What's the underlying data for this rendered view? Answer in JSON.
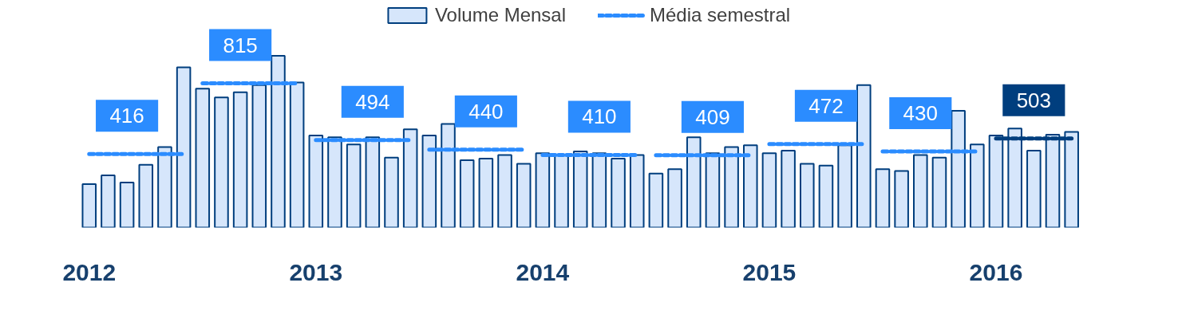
{
  "chart_data": {
    "type": "bar",
    "legend": "top",
    "grid": false,
    "categories": [
      "2012",
      null,
      null,
      null,
      null,
      null,
      null,
      null,
      null,
      null,
      null,
      null,
      "2013",
      null,
      null,
      null,
      null,
      null,
      null,
      null,
      null,
      null,
      null,
      null,
      "2014",
      null,
      null,
      null,
      null,
      null,
      null,
      null,
      null,
      null,
      null,
      null,
      "2015",
      null,
      null,
      null,
      null,
      null,
      null,
      null,
      null,
      null,
      null,
      null,
      "2016",
      null,
      null,
      null,
      null
    ],
    "series": [
      {
        "name": "Volume Mensal",
        "color": "#d6e6fb",
        "values": [
          245,
          295,
          255,
          355,
          455,
          905,
          785,
          735,
          765,
          805,
          970,
          820,
          520,
          510,
          470,
          510,
          395,
          555,
          520,
          585,
          380,
          390,
          410,
          360,
          420,
          410,
          430,
          420,
          390,
          410,
          305,
          330,
          510,
          420,
          455,
          465,
          420,
          435,
          360,
          350,
          465,
          805,
          330,
          320,
          410,
          395,
          660,
          470,
          520,
          560,
          435,
          525,
          540
        ]
      },
      {
        "name": "Média semestral",
        "type": "line",
        "line_style": "dashed",
        "color": "#2b8cff",
        "values": [
          416,
          416,
          416,
          416,
          416,
          416,
          815,
          815,
          815,
          815,
          815,
          815,
          494,
          494,
          494,
          494,
          494,
          494,
          440,
          440,
          440,
          440,
          440,
          440,
          410,
          410,
          410,
          410,
          410,
          410,
          409,
          409,
          409,
          409,
          409,
          409,
          472,
          472,
          472,
          472,
          472,
          472,
          430,
          430,
          430,
          430,
          430,
          430,
          null,
          null,
          null,
          null,
          null
        ],
        "value_labels": [
          null,
          null,
          "416",
          null,
          null,
          null,
          null,
          null,
          "815",
          null,
          null,
          null,
          null,
          null,
          null,
          "494",
          null,
          null,
          null,
          null,
          null,
          "440",
          null,
          null,
          null,
          null,
          null,
          "410",
          null,
          null,
          null,
          null,
          null,
          "409",
          null,
          null,
          null,
          null,
          null,
          "472",
          null,
          null,
          null,
          null,
          "430",
          null,
          null,
          null,
          null,
          null,
          null,
          null,
          null
        ]
      },
      {
        "type": "line",
        "line_style": "dashed",
        "color": "#003e7e",
        "values": [
          null,
          null,
          null,
          null,
          null,
          null,
          null,
          null,
          null,
          null,
          null,
          null,
          null,
          null,
          null,
          null,
          null,
          null,
          null,
          null,
          null,
          null,
          null,
          null,
          null,
          null,
          null,
          null,
          null,
          null,
          null,
          null,
          null,
          null,
          null,
          null,
          null,
          null,
          null,
          null,
          null,
          null,
          null,
          null,
          null,
          null,
          null,
          null,
          503,
          503,
          503,
          503,
          503
        ],
        "value_labels": [
          null,
          null,
          null,
          null,
          null,
          null,
          null,
          null,
          null,
          null,
          null,
          null,
          null,
          null,
          null,
          null,
          null,
          null,
          null,
          null,
          null,
          null,
          null,
          null,
          null,
          null,
          null,
          null,
          null,
          null,
          null,
          null,
          null,
          null,
          null,
          null,
          null,
          null,
          null,
          null,
          null,
          null,
          null,
          null,
          null,
          null,
          null,
          null,
          null,
          null,
          "503",
          null,
          null
        ]
      }
    ]
  }
}
